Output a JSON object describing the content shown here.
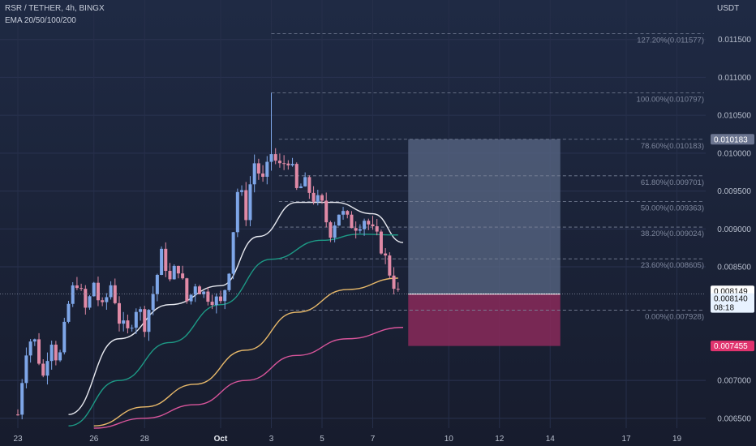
{
  "header": {
    "symbol_line": "RSR / TETHER, 4h, BINGX",
    "indicator_line": "EMA 20/50/100/200",
    "currency": "USDT"
  },
  "chart_data": {
    "type": "candlestick",
    "price_axis": {
      "range": [
        0.00637,
        0.012
      ],
      "ticks": [
        "0.011500",
        "0.011000",
        "0.010500",
        "0.010000",
        "0.009500",
        "0.009000",
        "0.008500",
        "0.007000",
        "0.006500"
      ]
    },
    "time_axis": {
      "range_days": [
        22.4,
        20.4
      ],
      "ticks": [
        {
          "label": "23",
          "day": 23
        },
        {
          "label": "26",
          "day": 26
        },
        {
          "label": "28",
          "day": 28
        },
        {
          "label": "Oct",
          "day": 1
        },
        {
          "label": "3",
          "day": 3
        },
        {
          "label": "5",
          "day": 5
        },
        {
          "label": "7",
          "day": 7
        },
        {
          "label": "10",
          "day": 10
        },
        {
          "label": "12",
          "day": 12
        },
        {
          "label": "14",
          "day": 14
        },
        {
          "label": "17",
          "day": 17
        },
        {
          "label": "19",
          "day": 19
        }
      ]
    },
    "candles_close_path": [
      [
        0.0,
        0.00655
      ],
      [
        0.3,
        0.0074
      ],
      [
        0.6,
        0.0076
      ],
      [
        1.0,
        0.00705
      ],
      [
        1.3,
        0.0076
      ],
      [
        1.6,
        0.0072
      ],
      [
        2.0,
        0.008
      ],
      [
        2.3,
        0.00835
      ],
      [
        2.7,
        0.0079
      ],
      [
        3.0,
        0.0083
      ],
      [
        3.3,
        0.0079
      ],
      [
        3.7,
        0.0083
      ],
      [
        4.0,
        0.0078
      ],
      [
        4.3,
        0.0076
      ],
      [
        4.7,
        0.008
      ],
      [
        5.0,
        0.00775
      ],
      [
        5.3,
        0.0081
      ],
      [
        5.7,
        0.0087
      ],
      [
        6.0,
        0.0083
      ],
      [
        6.3,
        0.00855
      ],
      [
        6.7,
        0.008
      ],
      [
        7.0,
        0.0083
      ],
      [
        7.3,
        0.00815
      ],
      [
        7.7,
        0.0081
      ],
      [
        8.0,
        0.008
      ],
      [
        8.3,
        0.0084
      ],
      [
        8.7,
        0.0096
      ],
      [
        9.0,
        0.0092
      ],
      [
        9.3,
        0.0099
      ],
      [
        9.7,
        0.0096
      ],
      [
        10.0,
        0.01
      ],
      [
        10.3,
        0.0098
      ],
      [
        10.7,
        0.00995
      ],
      [
        11.0,
        0.0095
      ],
      [
        11.3,
        0.0096
      ],
      [
        11.7,
        0.0094
      ],
      [
        12.0,
        0.0093
      ],
      [
        12.3,
        0.00895
      ],
      [
        12.7,
        0.00925
      ],
      [
        13.0,
        0.0091
      ],
      [
        13.3,
        0.00905
      ],
      [
        13.7,
        0.00915
      ],
      [
        14.0,
        0.00895
      ],
      [
        14.3,
        0.0088
      ],
      [
        14.7,
        0.0084
      ],
      [
        15.0,
        0.00814
      ]
    ],
    "ema": [
      {
        "label": "EMA 20",
        "color": "#e6e8ef",
        "points": [
          [
            2.0,
            0.00655
          ],
          [
            4.0,
            0.00755
          ],
          [
            6.0,
            0.008
          ],
          [
            8.0,
            0.00825
          ],
          [
            9.5,
            0.0089
          ],
          [
            11.0,
            0.00935
          ],
          [
            12.5,
            0.00935
          ],
          [
            14.0,
            0.0092
          ],
          [
            15.2,
            0.00882
          ]
        ]
      },
      {
        "label": "EMA 50",
        "color": "#1d9a86",
        "points": [
          [
            2.0,
            0.0064
          ],
          [
            4.0,
            0.007
          ],
          [
            6.0,
            0.0075
          ],
          [
            8.0,
            0.008
          ],
          [
            10.0,
            0.0086
          ],
          [
            12.0,
            0.00885
          ],
          [
            13.5,
            0.00893
          ],
          [
            15.0,
            0.00892
          ]
        ]
      },
      {
        "label": "EMA 100",
        "color": "#e8b96a",
        "points": [
          [
            3.0,
            0.0064
          ],
          [
            5.0,
            0.00665
          ],
          [
            7.0,
            0.00695
          ],
          [
            9.0,
            0.0074
          ],
          [
            11.0,
            0.0079
          ],
          [
            13.0,
            0.0082
          ],
          [
            15.0,
            0.00835
          ]
        ]
      },
      {
        "label": "EMA 200",
        "color": "#d9559b",
        "points": [
          [
            3.0,
            0.00637
          ],
          [
            5.0,
            0.0065
          ],
          [
            7.0,
            0.00668
          ],
          [
            9.0,
            0.007
          ],
          [
            11.0,
            0.00733
          ],
          [
            13.0,
            0.00755
          ],
          [
            15.2,
            0.0077
          ]
        ]
      }
    ],
    "fibonacci": [
      {
        "label": "127.20%(0.011577)",
        "value": 0.011577
      },
      {
        "label": "100.00%(0.010797)",
        "value": 0.010797
      },
      {
        "label": "78.60%(0.010183)",
        "value": 0.010183
      },
      {
        "label": "61.80%(0.009701)",
        "value": 0.009701
      },
      {
        "label": "50.00%(0.009363)",
        "value": 0.009363
      },
      {
        "label": "38.20%(0.009024)",
        "value": 0.009024
      },
      {
        "label": "23.60%(0.008605)",
        "value": 0.008605
      },
      {
        "label": "0.00%(0.007928)",
        "value": 0.007928
      }
    ],
    "position": {
      "entry": 0.00814,
      "target": 0.010183,
      "stop": 0.007455,
      "start_day_offset": 15.4,
      "end_day_offset": 21.4,
      "profit_color": "#5a6886",
      "loss_color": "#8a2a5a"
    },
    "price_labels": [
      {
        "text": "0.010183",
        "value": 0.010183,
        "bg": "#6b7590",
        "fg": "#ffffff"
      },
      {
        "text": "0.008149",
        "value": 0.008149,
        "bg": "#ffffff",
        "fg": "#111111"
      },
      {
        "text": "0.008140",
        "value": 0.00814,
        "bg": "#e8f2ff",
        "fg": "#111111",
        "sub": "08:18"
      },
      {
        "text": "0.007455",
        "value": 0.007455,
        "bg": "#e0336e",
        "fg": "#ffffff"
      }
    ],
    "current_price": 0.00814
  }
}
